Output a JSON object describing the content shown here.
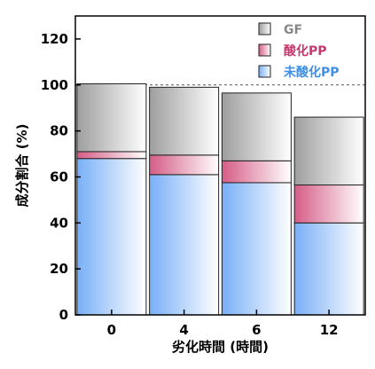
{
  "chart_data": {
    "type": "bar",
    "stacked": true,
    "categories": [
      "0",
      "4",
      "6",
      "12"
    ],
    "series": [
      {
        "name": "未酸化PP",
        "values": [
          68,
          61,
          57.5,
          40
        ],
        "color": "#79aff7"
      },
      {
        "name": "酸化PP",
        "values": [
          3,
          8.5,
          9.5,
          16.5
        ],
        "color": "#d55c86"
      },
      {
        "name": "GF",
        "values": [
          29.5,
          29.5,
          29.5,
          29.5
        ],
        "color": "#9e9e9e"
      }
    ],
    "legend_order": [
      "GF",
      "酸化PP",
      "未酸化PP"
    ],
    "legend_colors": [
      "#888888",
      "#c8386e",
      "#3d8fe8"
    ],
    "xlabel": "劣化時間 (時間)",
    "ylabel": "成分割合 (%)",
    "ylim": [
      0,
      130
    ],
    "yticks": [
      0,
      20,
      40,
      60,
      80,
      100,
      120
    ],
    "reference_line": 100,
    "legend_position": "top-right",
    "grid": false
  }
}
